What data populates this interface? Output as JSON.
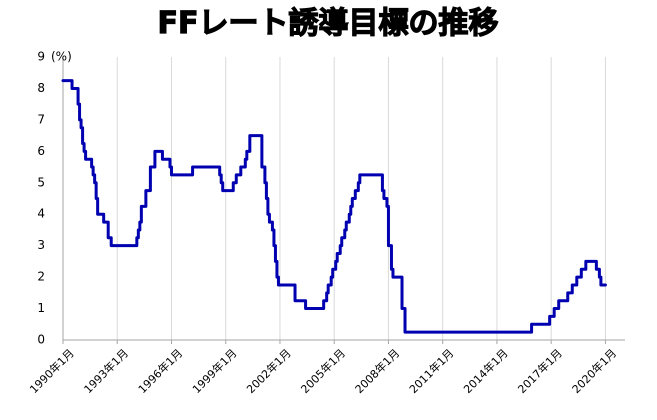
{
  "chart_data": {
    "type": "line",
    "title": "FFレート誘導目標の推移",
    "ylabel": "",
    "xlabel": "",
    "y_unit": "(%)",
    "ylim": [
      0,
      9
    ],
    "y_ticks": [
      0,
      1,
      2,
      3,
      4,
      5,
      6,
      7,
      8,
      9
    ],
    "xlim": [
      "1990-01",
      "2021-02"
    ],
    "x_tick_labels": [
      "1990年1月",
      "1993年1月",
      "1996年1月",
      "1999年1月",
      "2002年1月",
      "2005年1月",
      "2008年1月",
      "2011年1月",
      "2014年1月",
      "2017年1月",
      "2020年1月"
    ],
    "x_ticks": [
      "1990-01",
      "1993-01",
      "1996-01",
      "1999-01",
      "2002-01",
      "2005-01",
      "2008-01",
      "2011-01",
      "2014-01",
      "2017-01",
      "2020-01"
    ],
    "grid": {
      "vertical": true,
      "horizontal": false
    },
    "legend": "none",
    "colors": {
      "line": "#0000b0",
      "grid": "#d9d9d9",
      "axis": "#a6a6a6"
    },
    "series": [
      {
        "points": [
          [
            "1990-01",
            8.25
          ],
          [
            "1990-07",
            8.0
          ],
          [
            "1990-10",
            8.0
          ],
          [
            "1990-11",
            7.5
          ],
          [
            "1990-12",
            7.0
          ],
          [
            "1991-01",
            6.75
          ],
          [
            "1991-02",
            6.25
          ],
          [
            "1991-03",
            6.0
          ],
          [
            "1991-04",
            5.75
          ],
          [
            "1991-08",
            5.5
          ],
          [
            "1991-09",
            5.25
          ],
          [
            "1991-10",
            5.0
          ],
          [
            "1991-11",
            4.5
          ],
          [
            "1991-12",
            4.0
          ],
          [
            "1992-04",
            3.75
          ],
          [
            "1992-07",
            3.25
          ],
          [
            "1992-09",
            3.0
          ],
          [
            "1994-02",
            3.25
          ],
          [
            "1994-03",
            3.5
          ],
          [
            "1994-04",
            3.75
          ],
          [
            "1994-05",
            4.25
          ],
          [
            "1994-08",
            4.75
          ],
          [
            "1994-11",
            5.5
          ],
          [
            "1995-02",
            6.0
          ],
          [
            "1995-07",
            5.75
          ],
          [
            "1995-12",
            5.5
          ],
          [
            "1996-01",
            5.25
          ],
          [
            "1997-03",
            5.5
          ],
          [
            "1998-09",
            5.25
          ],
          [
            "1998-10",
            5.0
          ],
          [
            "1998-11",
            4.75
          ],
          [
            "1999-06",
            5.0
          ],
          [
            "1999-08",
            5.25
          ],
          [
            "1999-11",
            5.5
          ],
          [
            "2000-02",
            5.75
          ],
          [
            "2000-03",
            6.0
          ],
          [
            "2000-05",
            6.5
          ],
          [
            "2001-01",
            5.5
          ],
          [
            "2001-02",
            5.5
          ],
          [
            "2001-03",
            5.0
          ],
          [
            "2001-04",
            4.5
          ],
          [
            "2001-05",
            4.0
          ],
          [
            "2001-06",
            3.75
          ],
          [
            "2001-08",
            3.5
          ],
          [
            "2001-09",
            3.0
          ],
          [
            "2001-10",
            2.5
          ],
          [
            "2001-11",
            2.0
          ],
          [
            "2001-12",
            1.75
          ],
          [
            "2002-11",
            1.25
          ],
          [
            "2003-06",
            1.0
          ],
          [
            "2004-06",
            1.25
          ],
          [
            "2004-08",
            1.5
          ],
          [
            "2004-09",
            1.75
          ],
          [
            "2004-11",
            2.0
          ],
          [
            "2004-12",
            2.25
          ],
          [
            "2005-02",
            2.5
          ],
          [
            "2005-03",
            2.75
          ],
          [
            "2005-05",
            3.0
          ],
          [
            "2005-06",
            3.25
          ],
          [
            "2005-08",
            3.5
          ],
          [
            "2005-09",
            3.75
          ],
          [
            "2005-11",
            4.0
          ],
          [
            "2005-12",
            4.25
          ],
          [
            "2006-01",
            4.5
          ],
          [
            "2006-03",
            4.75
          ],
          [
            "2006-05",
            5.0
          ],
          [
            "2006-06",
            5.25
          ],
          [
            "2007-09",
            4.75
          ],
          [
            "2007-10",
            4.5
          ],
          [
            "2007-12",
            4.25
          ],
          [
            "2008-01",
            3.0
          ],
          [
            "2008-03",
            2.25
          ],
          [
            "2008-04",
            2.0
          ],
          [
            "2008-10",
            1.0
          ],
          [
            "2008-12",
            0.25
          ],
          [
            "2015-12",
            0.5
          ],
          [
            "2016-12",
            0.75
          ],
          [
            "2017-03",
            1.0
          ],
          [
            "2017-06",
            1.25
          ],
          [
            "2017-12",
            1.5
          ],
          [
            "2018-03",
            1.75
          ],
          [
            "2018-06",
            2.0
          ],
          [
            "2018-09",
            2.25
          ],
          [
            "2018-12",
            2.5
          ],
          [
            "2019-07",
            2.25
          ],
          [
            "2019-09",
            2.0
          ],
          [
            "2019-10",
            1.75
          ],
          [
            "2020-01",
            1.75
          ]
        ]
      }
    ]
  }
}
